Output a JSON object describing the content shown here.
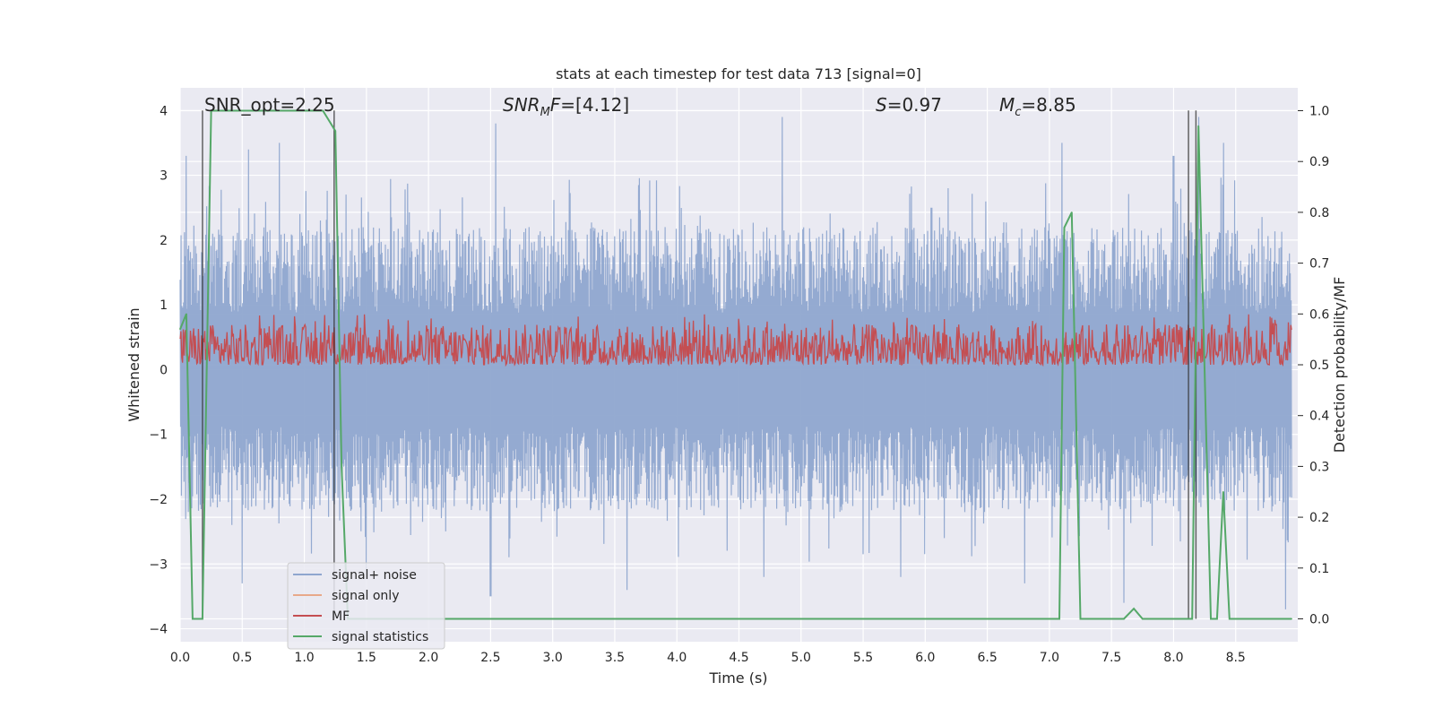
{
  "chart_data": {
    "type": "line",
    "title": "stats at each timestep for test data 713 [signal=0]",
    "xlabel": "Time (s)",
    "ylabel": "Whitened strain",
    "ylabel_right": "Detection probability/MF",
    "xlim": [
      0,
      9.0
    ],
    "ylim": [
      -4.2,
      4.35
    ],
    "ylim_right": [
      -0.045,
      1.045
    ],
    "x_ticks": [
      0.0,
      0.5,
      1.0,
      1.5,
      2.0,
      2.5,
      3.0,
      3.5,
      4.0,
      4.5,
      5.0,
      5.5,
      6.0,
      6.5,
      7.0,
      7.5,
      8.0,
      8.5
    ],
    "x_tick_labels": [
      "0.0",
      "0.5",
      "1.0",
      "1.5",
      "2.0",
      "2.5",
      "3.0",
      "3.5",
      "4.0",
      "4.5",
      "5.0",
      "5.5",
      "6.0",
      "6.5",
      "7.0",
      "7.5",
      "8.0",
      "8.5"
    ],
    "y_ticks": [
      4,
      3,
      2,
      1,
      0,
      -1,
      -2,
      -3,
      -4
    ],
    "y_tick_labels": [
      "4",
      "3",
      "2",
      "1",
      "0",
      "−1",
      "−2",
      "−3",
      "−4"
    ],
    "y_right_ticks": [
      1.0,
      0.9,
      0.8,
      0.7,
      0.6,
      0.5,
      0.4,
      0.3,
      0.2,
      0.1,
      0.0
    ],
    "y_right_tick_labels": [
      "1.0",
      "0.9",
      "0.8",
      "0.7",
      "0.6",
      "0.5",
      "0.4",
      "0.3",
      "0.2",
      "0.1",
      "0.0"
    ],
    "grid": true,
    "annotations": {
      "snr_opt": "SNR_opt=2.25",
      "snr_mf_sym": "SNR",
      "snr_mf_sub": "M",
      "snr_mf_sym2": "F",
      "snr_mf_val": "=[4.12]",
      "s_sym": "S",
      "s_val": "=0.97",
      "mc_sym": "M",
      "mc_sub": "c",
      "mc_val": "=8.85"
    },
    "vertical_markers": [
      0.18,
      1.24,
      8.12,
      8.18
    ],
    "series": [
      {
        "name": "signal+ noise",
        "color": "#8fa6cf",
        "axis": "left",
        "style": "noise",
        "envelope_typical": 2.2,
        "peaks_high": [
          [
            0.05,
            3.3
          ],
          [
            0.55,
            3.4
          ],
          [
            0.8,
            3.5
          ],
          [
            2.54,
            3.8
          ],
          [
            4.85,
            3.9
          ],
          [
            6.05,
            2.5
          ],
          [
            7.1,
            3.5
          ],
          [
            8.0,
            3.3
          ],
          [
            8.2,
            3.9
          ],
          [
            8.4,
            3.5
          ]
        ],
        "peaks_low": [
          [
            0.5,
            -3.3
          ],
          [
            1.5,
            -3.1
          ],
          [
            2.5,
            -3.5
          ],
          [
            3.6,
            -3.4
          ],
          [
            4.7,
            -3.2
          ],
          [
            5.8,
            -3.2
          ],
          [
            6.8,
            -3.3
          ],
          [
            7.6,
            -3.6
          ],
          [
            8.9,
            -3.7
          ]
        ]
      },
      {
        "name": "signal only",
        "color": "#e8a98a",
        "axis": "left",
        "values": []
      },
      {
        "name": "MF",
        "color": "#c44e52",
        "axis": "right",
        "style": "noise",
        "baseline": 0.5,
        "typical_max": 0.58,
        "peak_max": 0.6
      },
      {
        "name": "signal statistics",
        "color": "#55a868",
        "axis": "right",
        "x": [
          0.0,
          0.05,
          0.1,
          0.18,
          0.25,
          0.3,
          1.0,
          1.15,
          1.2,
          1.25,
          1.3,
          1.35,
          7.0,
          7.08,
          7.12,
          7.18,
          7.25,
          7.6,
          7.68,
          7.75,
          8.1,
          8.15,
          8.2,
          8.3,
          8.35,
          8.4,
          8.45,
          8.5,
          8.95
        ],
        "values": [
          0.57,
          0.6,
          0.0,
          0.0,
          1.0,
          1.0,
          1.0,
          1.0,
          0.98,
          0.96,
          0.3,
          0.0,
          0.0,
          0.0,
          0.77,
          0.8,
          0.0,
          0.0,
          0.02,
          0.0,
          0.0,
          0.0,
          0.97,
          0.0,
          0.0,
          0.25,
          0.0,
          0.0,
          0.0
        ]
      }
    ],
    "legend": {
      "placement": "lower-left",
      "entries": [
        "signal+ noise",
        "signal only",
        "MF",
        "signal statistics"
      ]
    }
  }
}
